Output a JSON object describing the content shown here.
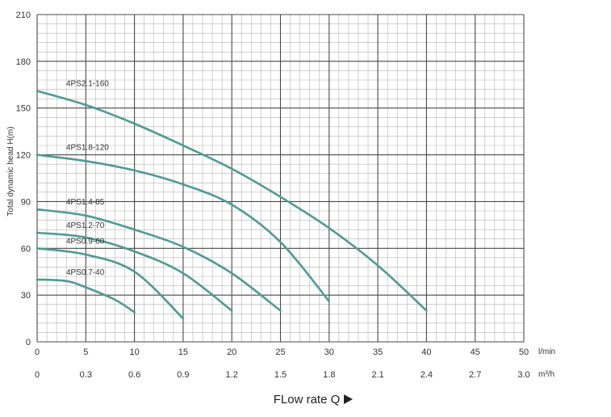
{
  "chart_data": {
    "type": "line",
    "ylabel": "Total dynamic head H(m)",
    "xlabel": "FLow rate Q",
    "x_units": [
      "l/min",
      "m³/h"
    ],
    "x_ticks": [
      "0",
      "5",
      "10",
      "15",
      "20",
      "25",
      "30",
      "35",
      "40",
      "45",
      "50"
    ],
    "x2_ticks": [
      "0",
      "0.3",
      "0.6",
      "0.9",
      "1.2",
      "1.5",
      "1.8",
      "2.1",
      "2.4",
      "2.7",
      "3.0"
    ],
    "y_ticks": [
      "0",
      "30",
      "60",
      "90",
      "120",
      "150",
      "180",
      "210"
    ],
    "xlim": [
      0,
      50
    ],
    "ylim": [
      0,
      210
    ],
    "grid": true,
    "line_color": "#4f9a96",
    "series": [
      {
        "name": "4PS2.1-160",
        "x": [
          0,
          5,
          10,
          15,
          20,
          25,
          30,
          35,
          40
        ],
        "y": [
          161,
          152,
          140,
          126,
          111,
          93,
          73,
          49,
          20
        ]
      },
      {
        "name": "4PS1.8-120",
        "x": [
          0,
          5,
          10,
          15,
          20,
          25,
          30
        ],
        "y": [
          120,
          116,
          110,
          101,
          88,
          64,
          26
        ]
      },
      {
        "name": "4PS1.4-85",
        "x": [
          0,
          5,
          10,
          15,
          20,
          25
        ],
        "y": [
          85,
          81,
          72,
          61,
          44,
          20
        ]
      },
      {
        "name": "4PS1.2-70",
        "x": [
          0,
          5,
          10,
          15,
          20
        ],
        "y": [
          70,
          67,
          58,
          44,
          20
        ]
      },
      {
        "name": "4PS0.9-60",
        "x": [
          0,
          5,
          10,
          15
        ],
        "y": [
          60,
          56,
          45,
          15
        ]
      },
      {
        "name": "4PS0.7-40",
        "x": [
          0,
          3,
          5,
          8,
          10
        ],
        "y": [
          40,
          39,
          35,
          27,
          19
        ]
      }
    ]
  }
}
